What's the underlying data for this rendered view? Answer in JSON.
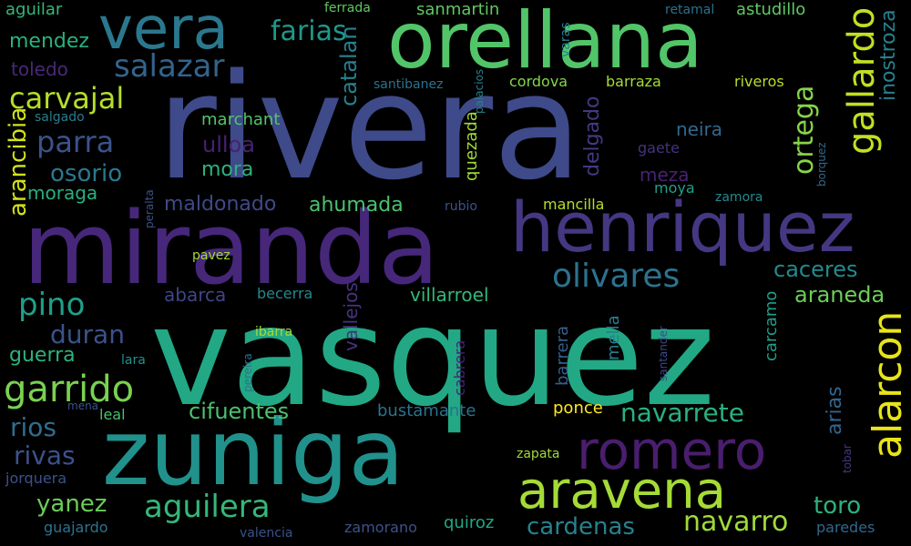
{
  "background": "#000000",
  "words": [
    {
      "text": "rivera",
      "color": "#3e4a89",
      "vertical": false
    },
    {
      "text": "vasquez",
      "color": "#22a884",
      "vertical": false
    },
    {
      "text": "miranda",
      "color": "#46277a",
      "vertical": false
    },
    {
      "text": "zuniga",
      "color": "#21918c",
      "vertical": false
    },
    {
      "text": "orellana",
      "color": "#52c569",
      "vertical": false
    },
    {
      "text": "henriquez",
      "color": "#453781",
      "vertical": false
    },
    {
      "text": "vera",
      "color": "#2a788e",
      "vertical": false
    },
    {
      "text": "romero",
      "color": "#4a1e6e",
      "vertical": false
    },
    {
      "text": "aravena",
      "color": "#a5db36",
      "vertical": false
    },
    {
      "text": "gallardo",
      "color": "#c2df23",
      "vertical": true
    },
    {
      "text": "alarcon",
      "color": "#e8e419",
      "vertical": true
    },
    {
      "text": "garrido",
      "color": "#7ad151",
      "vertical": false
    },
    {
      "text": "olivares",
      "color": "#2c728e",
      "vertical": false
    },
    {
      "text": "salazar",
      "color": "#33638d",
      "vertical": false
    },
    {
      "text": "carvajal",
      "color": "#b5de2b",
      "vertical": false
    },
    {
      "text": "parra",
      "color": "#3b528b",
      "vertical": false
    },
    {
      "text": "pino",
      "color": "#1fa088",
      "vertical": false
    },
    {
      "text": "aguilera",
      "color": "#35b779",
      "vertical": false
    },
    {
      "text": "ortega",
      "color": "#86d549",
      "vertical": true
    },
    {
      "text": "navarro",
      "color": "#a0da39",
      "vertical": false
    },
    {
      "text": "inostroza",
      "color": "#27808e",
      "vertical": true
    },
    {
      "text": "farias",
      "color": "#1f988b",
      "vertical": false
    },
    {
      "text": "yanez",
      "color": "#6ccd5a",
      "vertical": false
    },
    {
      "text": "duran",
      "color": "#3b528b",
      "vertical": false
    },
    {
      "text": "osorio",
      "color": "#2a788e",
      "vertical": false
    },
    {
      "text": "cifuentes",
      "color": "#4ac16d",
      "vertical": false
    },
    {
      "text": "navarrete",
      "color": "#2ab07f",
      "vertical": false
    },
    {
      "text": "cardenas",
      "color": "#26828e",
      "vertical": false
    },
    {
      "text": "rivas",
      "color": "#3b528b",
      "vertical": false
    },
    {
      "text": "rios",
      "color": "#2e6e8e",
      "vertical": false
    },
    {
      "text": "toro",
      "color": "#2db27d",
      "vertical": false
    },
    {
      "text": "caceres",
      "color": "#238a8d",
      "vertical": false
    },
    {
      "text": "araneda",
      "color": "#6ccd5a",
      "vertical": false
    },
    {
      "text": "arancibia",
      "color": "#d2e21b",
      "vertical": true
    },
    {
      "text": "catalan",
      "color": "#27808e",
      "vertical": true
    },
    {
      "text": "ulloa",
      "color": "#482173",
      "vertical": false
    },
    {
      "text": "delgado",
      "color": "#443983",
      "vertical": true
    },
    {
      "text": "maldonado",
      "color": "#3e4a89",
      "vertical": false
    },
    {
      "text": "ahumada",
      "color": "#4ac16d",
      "vertical": false
    },
    {
      "text": "guerra",
      "color": "#2db27d",
      "vertical": false
    },
    {
      "text": "mendez",
      "color": "#2ab07f",
      "vertical": false
    },
    {
      "text": "toledo",
      "color": "#482878",
      "vertical": false
    },
    {
      "text": "moraga",
      "color": "#29af7f",
      "vertical": false
    },
    {
      "text": "mora",
      "color": "#2db27d",
      "vertical": false
    },
    {
      "text": "meza",
      "color": "#482173",
      "vertical": false
    },
    {
      "text": "neira",
      "color": "#31688e",
      "vertical": false
    },
    {
      "text": "arias",
      "color": "#32658e",
      "vertical": true
    },
    {
      "text": "abarca",
      "color": "#414487",
      "vertical": false
    },
    {
      "text": "vallejos",
      "color": "#46337e",
      "vertical": true
    },
    {
      "text": "villarroel",
      "color": "#35b779",
      "vertical": false
    },
    {
      "text": "bustamante",
      "color": "#2c728e",
      "vertical": false
    },
    {
      "text": "quiroz",
      "color": "#22a884",
      "vertical": false
    },
    {
      "text": "aguilar",
      "color": "#35b779",
      "vertical": false
    },
    {
      "text": "marchant",
      "color": "#52c569",
      "vertical": false
    },
    {
      "text": "sanmartin",
      "color": "#5ec962",
      "vertical": false
    },
    {
      "text": "astudillo",
      "color": "#5ec962",
      "vertical": false
    },
    {
      "text": "quezada",
      "color": "#a0da39",
      "vertical": true
    },
    {
      "text": "gaete",
      "color": "#46337e",
      "vertical": false
    },
    {
      "text": "moya",
      "color": "#1fa088",
      "vertical": false
    },
    {
      "text": "cordova",
      "color": "#86d549",
      "vertical": false
    },
    {
      "text": "barraza",
      "color": "#a5db36",
      "vertical": false
    },
    {
      "text": "riveros",
      "color": "#b5de2b",
      "vertical": false
    },
    {
      "text": "mancilla",
      "color": "#b5de2b",
      "vertical": false
    },
    {
      "text": "ponce",
      "color": "#fde725",
      "vertical": false
    },
    {
      "text": "mella",
      "color": "#287d8e",
      "vertical": true
    },
    {
      "text": "barrera",
      "color": "#355f8d",
      "vertical": true
    },
    {
      "text": "carcamo",
      "color": "#1f9e89",
      "vertical": true
    },
    {
      "text": "becerra",
      "color": "#23898e",
      "vertical": false
    },
    {
      "text": "paredes",
      "color": "#31688e",
      "vertical": false
    },
    {
      "text": "zamorano",
      "color": "#3b528b",
      "vertical": false
    },
    {
      "text": "guajardo",
      "color": "#2c728e",
      "vertical": false
    },
    {
      "text": "jorquera",
      "color": "#3b528b",
      "vertical": false
    },
    {
      "text": "leal",
      "color": "#4ac16d",
      "vertical": false
    },
    {
      "text": "pavez",
      "color": "#a0da39",
      "vertical": false
    },
    {
      "text": "ibarra",
      "color": "#a5db36",
      "vertical": false
    },
    {
      "text": "cabrera",
      "color": "#482173",
      "vertical": true
    },
    {
      "text": "santibanez",
      "color": "#2c728e",
      "vertical": false
    },
    {
      "text": "salgado",
      "color": "#287d8e",
      "vertical": false
    },
    {
      "text": "ferrada",
      "color": "#5ec962",
      "vertical": false
    },
    {
      "text": "retamal",
      "color": "#2c728e",
      "vertical": false
    },
    {
      "text": "varas",
      "color": "#26828e",
      "vertical": true
    },
    {
      "text": "palacios",
      "color": "#26828e",
      "vertical": true
    },
    {
      "text": "zamora",
      "color": "#23898e",
      "vertical": false
    },
    {
      "text": "rubio",
      "color": "#3b528b",
      "vertical": false
    },
    {
      "text": "borquez",
      "color": "#31688e",
      "vertical": true
    },
    {
      "text": "peralta",
      "color": "#3b528b",
      "vertical": true
    },
    {
      "text": "lara",
      "color": "#21918c",
      "vertical": false
    },
    {
      "text": "mena",
      "color": "#3b528b",
      "vertical": false
    },
    {
      "text": "pereira",
      "color": "#2c728e",
      "vertical": true
    },
    {
      "text": "santander",
      "color": "#3e4a89",
      "vertical": true
    },
    {
      "text": "zapata",
      "color": "#a0da39",
      "vertical": false
    },
    {
      "text": "tobar",
      "color": "#443983",
      "vertical": true
    },
    {
      "text": "valencia",
      "color": "#3b528b",
      "vertical": false
    }
  ]
}
